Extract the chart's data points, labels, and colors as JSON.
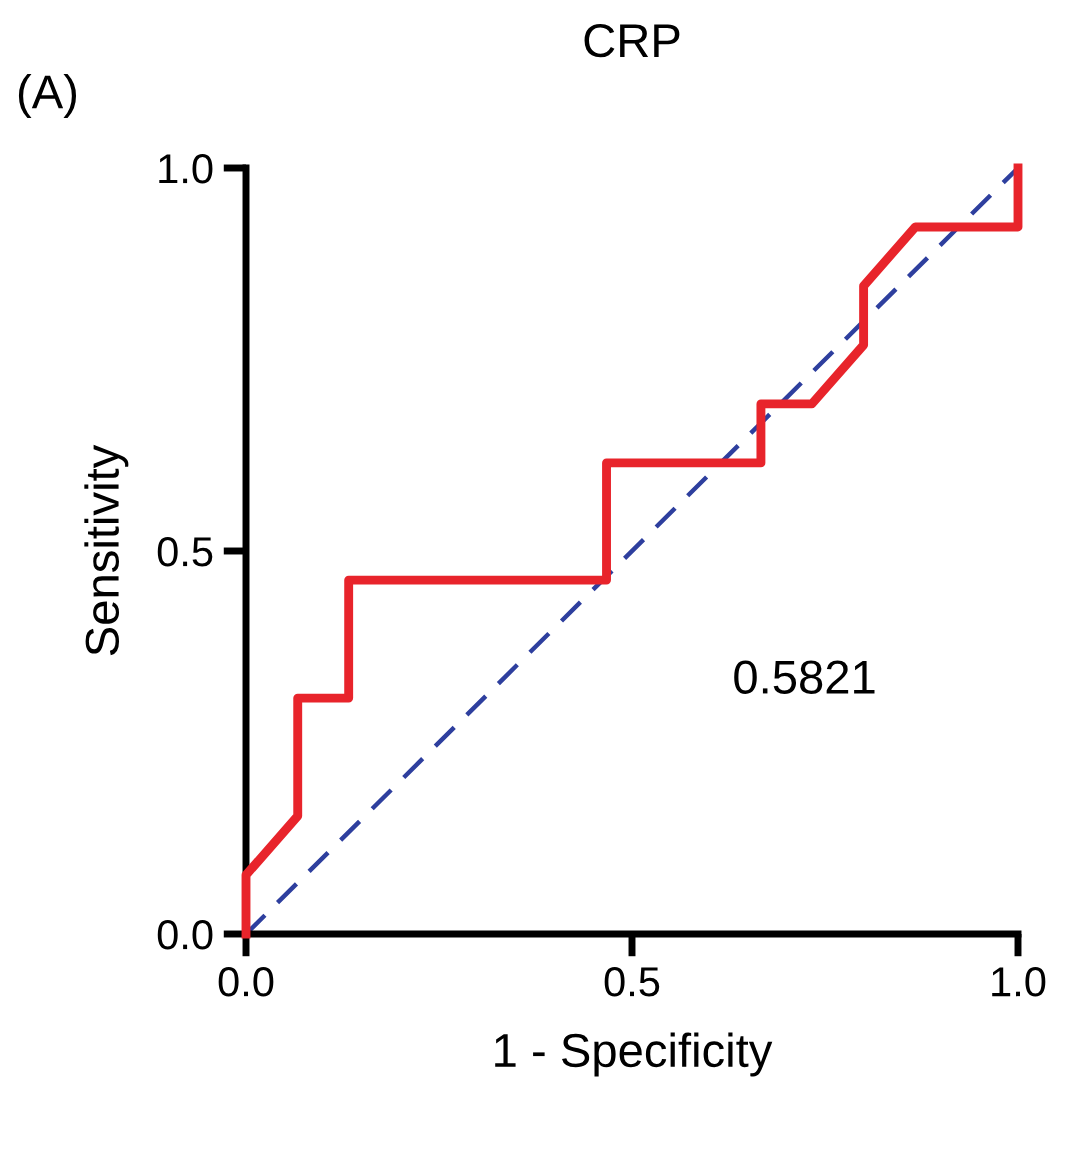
{
  "chart_data": {
    "type": "line",
    "title": "CRP",
    "xlabel": "1 - Specificity",
    "ylabel": "Sensitivity",
    "annotations": [
      "0.5821",
      "(A)"
    ],
    "series": [
      {
        "color": "#2e3f9e",
        "line_style": "dashed",
        "x": [
          0,
          1
        ],
        "values": [
          0,
          1
        ]
      },
      {
        "type": "step",
        "color": "#e8242b",
        "line_style": "solid",
        "x": [
          0,
          0,
          0.067,
          0.067,
          0.133,
          0.133,
          0.467,
          0.467,
          0.667,
          0.667,
          0.733,
          0.8,
          0.8,
          0.867,
          1,
          1
        ],
        "values": [
          0,
          0.077,
          0.154,
          0.308,
          0.308,
          0.462,
          0.462,
          0.615,
          0.615,
          0.692,
          0.692,
          0.769,
          0.846,
          0.923,
          0.923,
          1
        ]
      }
    ],
    "xlim": [
      0,
      1
    ],
    "ylim": [
      0,
      1
    ],
    "xticks": [
      {
        "value": 0,
        "label": "0.0"
      },
      {
        "value": 0.5,
        "label": "0.5"
      },
      {
        "value": 1,
        "label": "1.0"
      }
    ],
    "yticks": [
      {
        "value": 0,
        "label": "0.0"
      },
      {
        "value": 0.5,
        "label": "0.5"
      },
      {
        "value": 1,
        "label": "1.0"
      }
    ],
    "grid": false,
    "legend": false,
    "marker": "none"
  }
}
